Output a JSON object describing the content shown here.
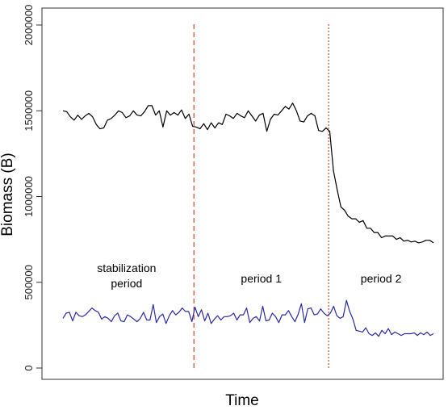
{
  "chart_data": {
    "type": "line",
    "title": "",
    "xlabel": "Time",
    "ylabel": "Biomass (B)",
    "xlim": [
      1,
      100
    ],
    "ylim": [
      0,
      2000000
    ],
    "yticks": [
      0,
      500000,
      1000000,
      1500000,
      2000000
    ],
    "ytick_labels": [
      "0",
      "500000",
      "1000000",
      "1500000",
      "2000000"
    ],
    "grid": false,
    "legend": "none",
    "vlines": [
      {
        "x": 36,
        "style": "dashed",
        "color": "#d2553a"
      },
      {
        "x": 72,
        "style": "dotted",
        "color": "#d2553a"
      }
    ],
    "annotations": [
      {
        "lines": [
          "stabilization",
          "period"
        ],
        "x": 18,
        "y": 560000
      },
      {
        "lines": [
          "period 1"
        ],
        "x": 54,
        "y": 500000
      },
      {
        "lines": [
          "period 2"
        ],
        "x": 86,
        "y": 500000
      }
    ],
    "series": [
      {
        "color": "#000000",
        "values": [
          1500000,
          1495000,
          1465000,
          1445000,
          1475000,
          1450000,
          1470000,
          1485000,
          1465000,
          1420000,
          1395000,
          1400000,
          1445000,
          1455000,
          1475000,
          1500000,
          1490000,
          1460000,
          1470000,
          1500000,
          1475000,
          1470000,
          1495000,
          1530000,
          1530000,
          1475000,
          1500000,
          1405000,
          1500000,
          1475000,
          1490000,
          1475000,
          1505000,
          1455000,
          1480000,
          1410000,
          1405000,
          1395000,
          1425000,
          1390000,
          1430000,
          1400000,
          1430000,
          1420000,
          1480000,
          1470000,
          1455000,
          1485000,
          1470000,
          1460000,
          1500000,
          1470000,
          1440000,
          1475000,
          1485000,
          1380000,
          1450000,
          1480000,
          1475000,
          1500000,
          1525000,
          1510000,
          1545000,
          1500000,
          1440000,
          1435000,
          1470000,
          1485000,
          1470000,
          1385000,
          1380000,
          1400000,
          1380000,
          1150000,
          1040000,
          940000,
          920000,
          885000,
          870000,
          870000,
          850000,
          860000,
          815000,
          815000,
          790000,
          790000,
          760000,
          770000,
          770000,
          770000,
          750000,
          760000,
          740000,
          745000,
          735000,
          740000,
          730000,
          735000,
          745000,
          745000,
          730000
        ]
      },
      {
        "color": "#2a2aa8",
        "values": [
          290000,
          320000,
          325000,
          275000,
          325000,
          305000,
          300000,
          310000,
          330000,
          350000,
          335000,
          325000,
          285000,
          300000,
          290000,
          270000,
          305000,
          320000,
          275000,
          270000,
          310000,
          300000,
          285000,
          270000,
          290000,
          325000,
          280000,
          280000,
          370000,
          265000,
          300000,
          315000,
          260000,
          305000,
          335000,
          310000,
          325000,
          350000,
          330000,
          330000,
          270000,
          355000,
          300000,
          340000,
          275000,
          320000,
          260000,
          285000,
          305000,
          280000,
          300000,
          300000,
          305000,
          320000,
          280000,
          310000,
          310000,
          350000,
          265000,
          290000,
          300000,
          275000,
          360000,
          275000,
          280000,
          320000,
          300000,
          265000,
          310000,
          310000,
          335000,
          300000,
          270000,
          315000,
          375000,
          265000,
          345000,
          350000,
          310000,
          315000,
          345000,
          320000,
          305000,
          320000,
          360000,
          305000,
          290000,
          300000,
          395000,
          330000,
          285000,
          220000,
          215000,
          210000,
          235000,
          200000,
          190000,
          205000,
          185000,
          220000,
          200000,
          230000,
          195000,
          210000,
          200000,
          190000,
          200000,
          200000,
          200000,
          205000,
          190000,
          205000,
          195000,
          210000,
          190000,
          200000
        ]
      }
    ]
  }
}
